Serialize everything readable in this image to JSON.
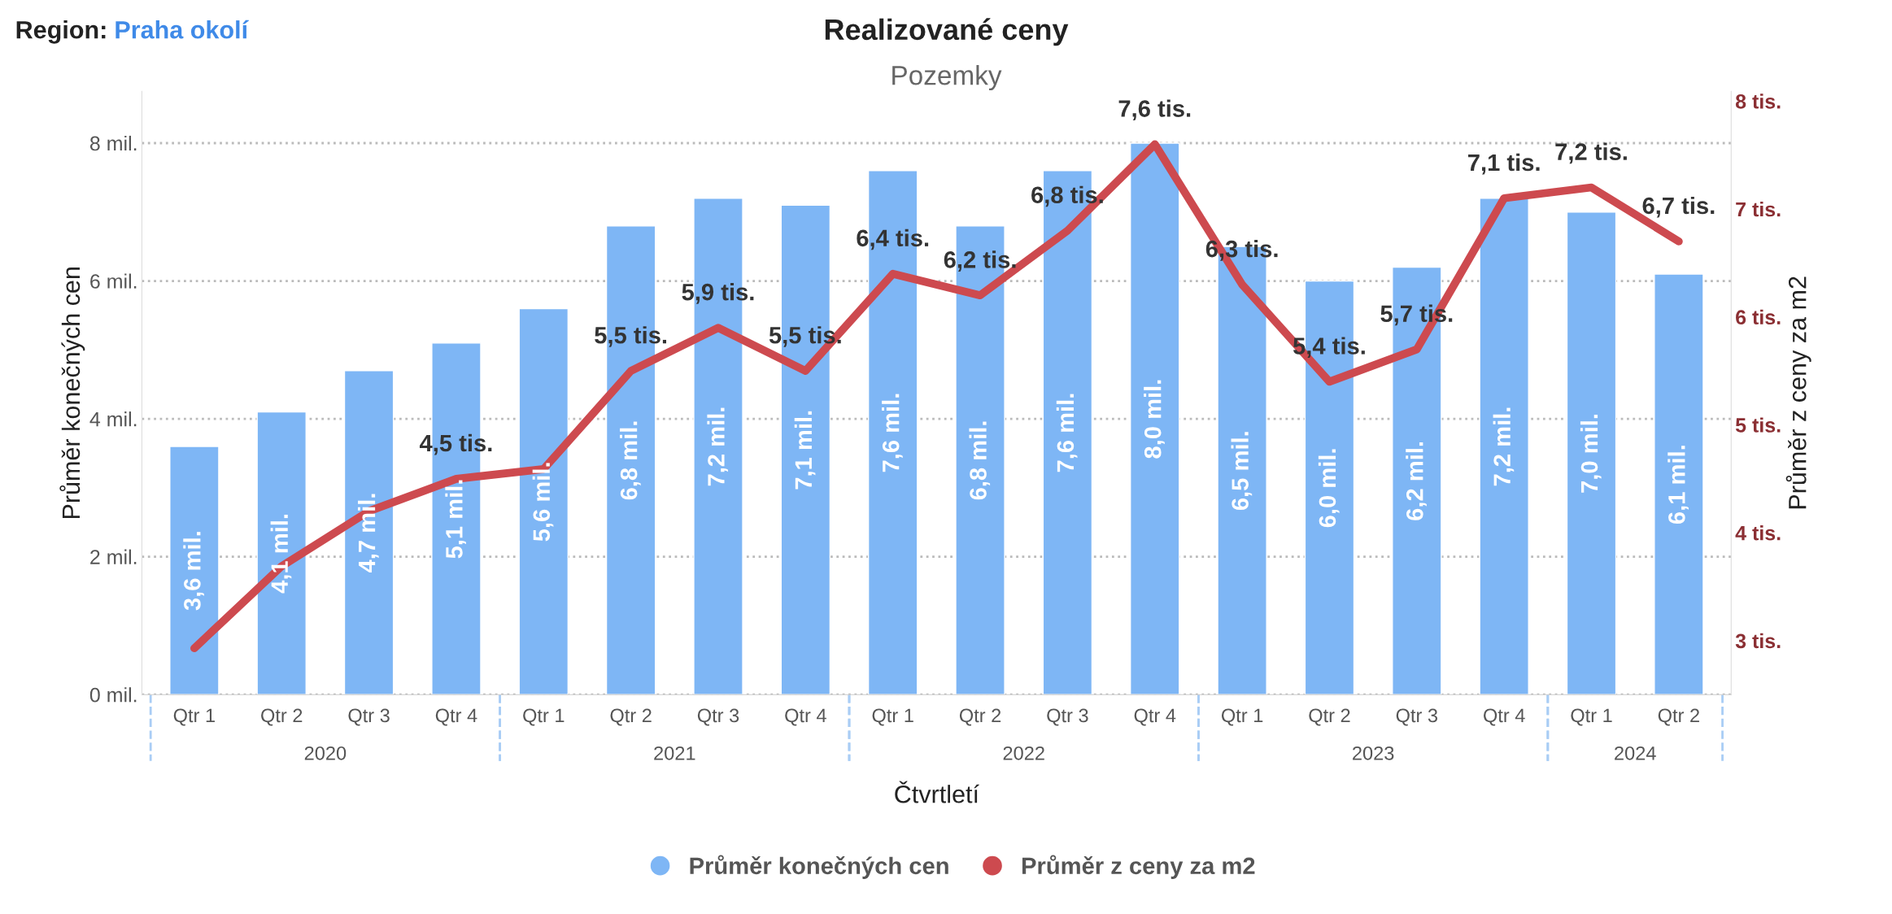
{
  "chart_data": {
    "type": "bar",
    "title": "Realizované ceny",
    "subtitle": "Pozemky",
    "xlabel": "Čtvrtletí",
    "ylabel": "Průměr konečných cen",
    "y2label": "Průměr z ceny za m2",
    "categories": [
      "Qtr 1",
      "Qtr 2",
      "Qtr 3",
      "Qtr 4",
      "Qtr 1",
      "Qtr 2",
      "Qtr 3",
      "Qtr 4",
      "Qtr 1",
      "Qtr 2",
      "Qtr 3",
      "Qtr 4",
      "Qtr 1",
      "Qtr 2",
      "Qtr 3",
      "Qtr 4",
      "Qtr 1",
      "Qtr 2"
    ],
    "series": [
      {
        "name": "Průměr konečných cen",
        "color": "#7eb6f5",
        "values": [
          3.6,
          4.1,
          4.7,
          5.1,
          5.6,
          6.8,
          7.2,
          7.1,
          7.6,
          6.8,
          7.6,
          8.0,
          6.5,
          6.0,
          6.2,
          7.2,
          7.0,
          6.1
        ],
        "value_labels": [
          "3,6 mil.",
          "4,1 mil.",
          "4,7 mil.",
          "5,1 mil.",
          "5,6 mil.",
          "6,8 mil.",
          "7,2 mil.",
          "7,1 mil.",
          "7,6 mil.",
          "6,8 mil.",
          "7,6 mil.",
          "8,0 mil.",
          "6,5 mil.",
          "6,0 mil.",
          "6,2 mil.",
          "7,2 mil.",
          "7,0 mil.",
          "6,1 mil."
        ]
      },
      {
        "name": "Průměr z ceny za m2",
        "type": "line",
        "axis": "y2",
        "color": "#cd4a4f",
        "values": [
          2.93,
          3.69,
          4.2,
          4.5,
          4.59,
          5.5,
          5.9,
          5.5,
          6.4,
          6.2,
          6.8,
          7.6,
          6.3,
          5.4,
          5.7,
          7.1,
          7.2,
          6.7
        ],
        "value_labels": [
          null,
          null,
          null,
          "4,5 tis.",
          null,
          "5,5 tis.",
          "5,9 tis.",
          "5,5 tis.",
          "6,4 tis.",
          "6,2 tis.",
          "6,8 tis.",
          "7,6 tis.",
          "6,3 tis.",
          "5,4 tis.",
          "5,7 tis.",
          "7,1 tis.",
          "7,2 tis.",
          "6,7 tis."
        ]
      }
    ],
    "ylim": [
      0,
      8.75
    ],
    "yticks": [
      {
        "value": 0,
        "label": "0 mil."
      },
      {
        "value": 2,
        "label": "2 mil."
      },
      {
        "value": 4,
        "label": "4 mil."
      },
      {
        "value": 6,
        "label": "6 mil."
      },
      {
        "value": 8,
        "label": "8 mil."
      }
    ],
    "y2lim": [
      2.5,
      8.09
    ],
    "y2ticks": [
      {
        "value": 3,
        "label": "3 tis."
      },
      {
        "value": 4,
        "label": "4 tis."
      },
      {
        "value": 5,
        "label": "5 tis."
      },
      {
        "value": 6,
        "label": "6 tis."
      },
      {
        "value": 7,
        "label": "7 tis."
      },
      {
        "value": 8,
        "label": "8 tis."
      }
    ],
    "grid": "y",
    "legend": "bottom",
    "marker": "none",
    "line_style": "solid",
    "annotations": [
      "Region: Praha okolí",
      "2020",
      "2021",
      "2022",
      "2023",
      "2024"
    ]
  }
}
